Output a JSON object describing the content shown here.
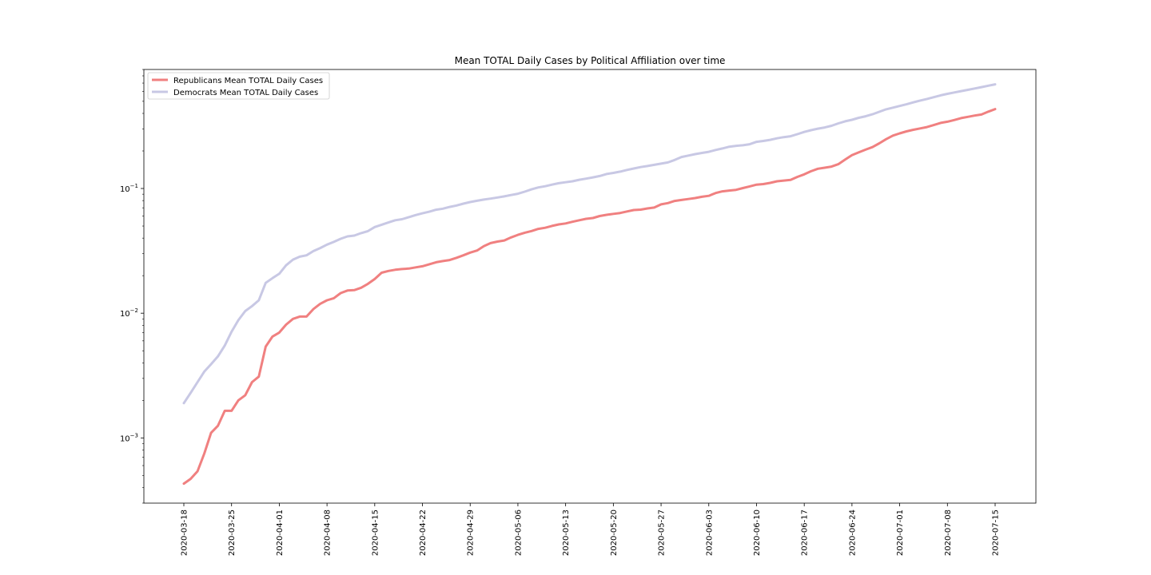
{
  "chart_data": {
    "type": "line",
    "title": "Mean TOTAL Daily Cases by Political Affiliation over time",
    "xlabel": "",
    "ylabel": "",
    "yscale": "log",
    "ylim": [
      0.0003,
      0.9
    ],
    "x_start": "2020-03-18",
    "x_end": "2020-07-15",
    "x_ticks": [
      "2020-03-18",
      "2020-03-25",
      "2020-04-01",
      "2020-04-08",
      "2020-04-15",
      "2020-04-22",
      "2020-04-29",
      "2020-05-06",
      "2020-05-13",
      "2020-05-20",
      "2020-05-27",
      "2020-06-03",
      "2020-06-10",
      "2020-06-17",
      "2020-06-24",
      "2020-07-01",
      "2020-07-08",
      "2020-07-15"
    ],
    "y_ticks": [
      {
        "value": 0.001,
        "base": "10",
        "exp": "−3"
      },
      {
        "value": 0.01,
        "base": "10",
        "exp": "−2"
      },
      {
        "value": 0.1,
        "base": "10",
        "exp": "−1"
      }
    ],
    "grid": false,
    "legend_position": "upper-left",
    "series": [
      {
        "name": "Republicans Mean TOTAL Daily Cases",
        "color": "#f08080",
        "points": [
          [
            "2020-03-18",
            0.00043
          ],
          [
            "2020-03-19",
            0.00047
          ],
          [
            "2020-03-20",
            0.00054
          ],
          [
            "2020-03-21",
            0.00075
          ],
          [
            "2020-03-22",
            0.0011
          ],
          [
            "2020-03-23",
            0.00125
          ],
          [
            "2020-03-24",
            0.00165
          ],
          [
            "2020-03-25",
            0.00165
          ],
          [
            "2020-03-26",
            0.002
          ],
          [
            "2020-03-27",
            0.0022
          ],
          [
            "2020-03-28",
            0.0028
          ],
          [
            "2020-03-29",
            0.0031
          ],
          [
            "2020-03-30",
            0.0054
          ],
          [
            "2020-03-31",
            0.0065
          ],
          [
            "2020-04-01",
            0.007
          ],
          [
            "2020-04-02",
            0.0081
          ],
          [
            "2020-04-03",
            0.009
          ],
          [
            "2020-04-04",
            0.0094
          ],
          [
            "2020-04-05",
            0.0094
          ],
          [
            "2020-04-06",
            0.0108
          ],
          [
            "2020-04-07",
            0.0119
          ],
          [
            "2020-04-08",
            0.0127
          ],
          [
            "2020-04-09",
            0.0132
          ],
          [
            "2020-04-10",
            0.0145
          ],
          [
            "2020-04-11",
            0.0152
          ],
          [
            "2020-04-12",
            0.0153
          ],
          [
            "2020-04-13",
            0.016
          ],
          [
            "2020-04-14",
            0.0172
          ],
          [
            "2020-04-15",
            0.0188
          ],
          [
            "2020-04-16",
            0.0211
          ],
          [
            "2020-04-17",
            0.0218
          ],
          [
            "2020-04-18",
            0.0223
          ],
          [
            "2020-04-19",
            0.0226
          ],
          [
            "2020-04-20",
            0.0228
          ],
          [
            "2020-04-21",
            0.0233
          ],
          [
            "2020-04-22",
            0.0238
          ],
          [
            "2020-04-23",
            0.0247
          ],
          [
            "2020-04-24",
            0.0256
          ],
          [
            "2020-04-25",
            0.0262
          ],
          [
            "2020-04-26",
            0.0267
          ],
          [
            "2020-04-27",
            0.0278
          ],
          [
            "2020-04-28",
            0.0291
          ],
          [
            "2020-04-29",
            0.0306
          ],
          [
            "2020-04-30",
            0.0318
          ],
          [
            "2020-05-01",
            0.0345
          ],
          [
            "2020-05-02",
            0.0365
          ],
          [
            "2020-05-03",
            0.0375
          ],
          [
            "2020-05-04",
            0.0383
          ],
          [
            "2020-05-05",
            0.0405
          ],
          [
            "2020-05-06",
            0.0425
          ],
          [
            "2020-05-07",
            0.0442
          ],
          [
            "2020-05-08",
            0.0456
          ],
          [
            "2020-05-09",
            0.0474
          ],
          [
            "2020-05-10",
            0.0484
          ],
          [
            "2020-05-11",
            0.0501
          ],
          [
            "2020-05-12",
            0.0515
          ],
          [
            "2020-05-13",
            0.0524
          ],
          [
            "2020-05-14",
            0.0541
          ],
          [
            "2020-05-15",
            0.0556
          ],
          [
            "2020-05-16",
            0.0571
          ],
          [
            "2020-05-17",
            0.058
          ],
          [
            "2020-05-18",
            0.0601
          ],
          [
            "2020-05-19",
            0.0615
          ],
          [
            "2020-05-20",
            0.0626
          ],
          [
            "2020-05-21",
            0.0636
          ],
          [
            "2020-05-22",
            0.0654
          ],
          [
            "2020-05-23",
            0.0672
          ],
          [
            "2020-05-24",
            0.0677
          ],
          [
            "2020-05-25",
            0.0692
          ],
          [
            "2020-05-26",
            0.0703
          ],
          [
            "2020-05-27",
            0.0746
          ],
          [
            "2020-05-28",
            0.0764
          ],
          [
            "2020-05-29",
            0.0795
          ],
          [
            "2020-05-30",
            0.0809
          ],
          [
            "2020-05-31",
            0.0823
          ],
          [
            "2020-06-01",
            0.0838
          ],
          [
            "2020-06-02",
            0.0858
          ],
          [
            "2020-06-03",
            0.0873
          ],
          [
            "2020-06-04",
            0.0919
          ],
          [
            "2020-06-05",
            0.0949
          ],
          [
            "2020-06-06",
            0.0962
          ],
          [
            "2020-06-07",
            0.0976
          ],
          [
            "2020-06-08",
            0.1007
          ],
          [
            "2020-06-09",
            0.104
          ],
          [
            "2020-06-10",
            0.1074
          ],
          [
            "2020-06-11",
            0.1085
          ],
          [
            "2020-06-12",
            0.1109
          ],
          [
            "2020-06-13",
            0.1143
          ],
          [
            "2020-06-14",
            0.1157
          ],
          [
            "2020-06-15",
            0.1171
          ],
          [
            "2020-06-16",
            0.1239
          ],
          [
            "2020-06-17",
            0.1299
          ],
          [
            "2020-06-18",
            0.1375
          ],
          [
            "2020-06-19",
            0.1439
          ],
          [
            "2020-06-20",
            0.1468
          ],
          [
            "2020-06-21",
            0.1499
          ],
          [
            "2020-06-22",
            0.1565
          ],
          [
            "2020-06-23",
            0.1705
          ],
          [
            "2020-06-24",
            0.1851
          ],
          [
            "2020-06-25",
            0.1947
          ],
          [
            "2020-06-26",
            0.2047
          ],
          [
            "2020-06-27",
            0.2148
          ],
          [
            "2020-06-28",
            0.2301
          ],
          [
            "2020-06-29",
            0.2484
          ],
          [
            "2020-06-30",
            0.2653
          ],
          [
            "2020-07-01",
            0.2765
          ],
          [
            "2020-07-02",
            0.2872
          ],
          [
            "2020-07-03",
            0.2958
          ],
          [
            "2020-07-04",
            0.3033
          ],
          [
            "2020-07-05",
            0.3107
          ],
          [
            "2020-07-06",
            0.3227
          ],
          [
            "2020-07-07",
            0.3356
          ],
          [
            "2020-07-08",
            0.3433
          ],
          [
            "2020-07-09",
            0.3537
          ],
          [
            "2020-07-10",
            0.3666
          ],
          [
            "2020-07-11",
            0.3755
          ],
          [
            "2020-07-12",
            0.3843
          ],
          [
            "2020-07-13",
            0.3918
          ],
          [
            "2020-07-14",
            0.4132
          ],
          [
            "2020-07-15",
            0.433
          ]
        ]
      },
      {
        "name": "Democrats Mean TOTAL Daily Cases",
        "color": "#c8c8e4",
        "points": [
          [
            "2020-03-18",
            0.0019
          ],
          [
            "2020-03-19",
            0.0023
          ],
          [
            "2020-03-20",
            0.0028
          ],
          [
            "2020-03-21",
            0.0034
          ],
          [
            "2020-03-22",
            0.0039
          ],
          [
            "2020-03-23",
            0.0045
          ],
          [
            "2020-03-24",
            0.0055
          ],
          [
            "2020-03-25",
            0.0071
          ],
          [
            "2020-03-26",
            0.0088
          ],
          [
            "2020-03-27",
            0.0104
          ],
          [
            "2020-03-28",
            0.0114
          ],
          [
            "2020-03-29",
            0.0127
          ],
          [
            "2020-03-30",
            0.0175
          ],
          [
            "2020-03-31",
            0.0191
          ],
          [
            "2020-04-01",
            0.0207
          ],
          [
            "2020-04-02",
            0.0242
          ],
          [
            "2020-04-03",
            0.0269
          ],
          [
            "2020-04-04",
            0.0284
          ],
          [
            "2020-04-05",
            0.0291
          ],
          [
            "2020-04-06",
            0.0315
          ],
          [
            "2020-04-07",
            0.0333
          ],
          [
            "2020-04-08",
            0.0355
          ],
          [
            "2020-04-09",
            0.0373
          ],
          [
            "2020-04-10",
            0.0395
          ],
          [
            "2020-04-11",
            0.0413
          ],
          [
            "2020-04-12",
            0.0419
          ],
          [
            "2020-04-13",
            0.0439
          ],
          [
            "2020-04-14",
            0.0455
          ],
          [
            "2020-04-15",
            0.0491
          ],
          [
            "2020-04-16",
            0.0512
          ],
          [
            "2020-04-17",
            0.0534
          ],
          [
            "2020-04-18",
            0.0556
          ],
          [
            "2020-04-19",
            0.0567
          ],
          [
            "2020-04-20",
            0.0589
          ],
          [
            "2020-04-21",
            0.0612
          ],
          [
            "2020-04-22",
            0.0632
          ],
          [
            "2020-04-23",
            0.0651
          ],
          [
            "2020-04-24",
            0.0676
          ],
          [
            "2020-04-25",
            0.0689
          ],
          [
            "2020-04-26",
            0.0712
          ],
          [
            "2020-04-27",
            0.0731
          ],
          [
            "2020-04-28",
            0.0756
          ],
          [
            "2020-04-29",
            0.0778
          ],
          [
            "2020-04-30",
            0.0797
          ],
          [
            "2020-05-01",
            0.0815
          ],
          [
            "2020-05-02",
            0.083
          ],
          [
            "2020-05-03",
            0.0847
          ],
          [
            "2020-05-04",
            0.0864
          ],
          [
            "2020-05-05",
            0.0886
          ],
          [
            "2020-05-06",
            0.0908
          ],
          [
            "2020-05-07",
            0.0943
          ],
          [
            "2020-05-08",
            0.0984
          ],
          [
            "2020-05-09",
            0.1019
          ],
          [
            "2020-05-10",
            0.1043
          ],
          [
            "2020-05-11",
            0.1074
          ],
          [
            "2020-05-12",
            0.1102
          ],
          [
            "2020-05-13",
            0.1122
          ],
          [
            "2020-05-14",
            0.1143
          ],
          [
            "2020-05-15",
            0.1174
          ],
          [
            "2020-05-16",
            0.1199
          ],
          [
            "2020-05-17",
            0.1227
          ],
          [
            "2020-05-18",
            0.1259
          ],
          [
            "2020-05-19",
            0.1306
          ],
          [
            "2020-05-20",
            0.1334
          ],
          [
            "2020-05-21",
            0.1365
          ],
          [
            "2020-05-22",
            0.1408
          ],
          [
            "2020-05-23",
            0.1446
          ],
          [
            "2020-05-24",
            0.1484
          ],
          [
            "2020-05-25",
            0.1513
          ],
          [
            "2020-05-26",
            0.1548
          ],
          [
            "2020-05-27",
            0.1582
          ],
          [
            "2020-05-28",
            0.1618
          ],
          [
            "2020-05-29",
            0.1693
          ],
          [
            "2020-05-30",
            0.1787
          ],
          [
            "2020-05-31",
            0.1837
          ],
          [
            "2020-06-01",
            0.1886
          ],
          [
            "2020-06-02",
            0.1927
          ],
          [
            "2020-06-03",
            0.1968
          ],
          [
            "2020-06-04",
            0.2035
          ],
          [
            "2020-06-05",
            0.2093
          ],
          [
            "2020-06-06",
            0.2162
          ],
          [
            "2020-06-07",
            0.2197
          ],
          [
            "2020-06-08",
            0.2221
          ],
          [
            "2020-06-09",
            0.2265
          ],
          [
            "2020-06-10",
            0.2365
          ],
          [
            "2020-06-11",
            0.2404
          ],
          [
            "2020-06-12",
            0.2457
          ],
          [
            "2020-06-13",
            0.2526
          ],
          [
            "2020-06-14",
            0.2581
          ],
          [
            "2020-06-15",
            0.2625
          ],
          [
            "2020-06-16",
            0.2725
          ],
          [
            "2020-06-17",
            0.2842
          ],
          [
            "2020-06-18",
            0.2933
          ],
          [
            "2020-06-19",
            0.3019
          ],
          [
            "2020-06-20",
            0.3086
          ],
          [
            "2020-06-21",
            0.3181
          ],
          [
            "2020-06-22",
            0.3325
          ],
          [
            "2020-06-23",
            0.3459
          ],
          [
            "2020-06-24",
            0.3557
          ],
          [
            "2020-06-25",
            0.3688
          ],
          [
            "2020-06-26",
            0.3794
          ],
          [
            "2020-06-27",
            0.3934
          ],
          [
            "2020-06-28",
            0.412
          ],
          [
            "2020-06-29",
            0.4315
          ],
          [
            "2020-06-30",
            0.4447
          ],
          [
            "2020-07-01",
            0.4585
          ],
          [
            "2020-07-02",
            0.4735
          ],
          [
            "2020-07-03",
            0.4903
          ],
          [
            "2020-07-04",
            0.5072
          ],
          [
            "2020-07-05",
            0.5227
          ],
          [
            "2020-07-06",
            0.5392
          ],
          [
            "2020-07-07",
            0.5583
          ],
          [
            "2020-07-08",
            0.5741
          ],
          [
            "2020-07-09",
            0.5887
          ],
          [
            "2020-07-10",
            0.6031
          ],
          [
            "2020-07-11",
            0.6175
          ],
          [
            "2020-07-12",
            0.6335
          ],
          [
            "2020-07-13",
            0.6499
          ],
          [
            "2020-07-14",
            0.6669
          ],
          [
            "2020-07-15",
            0.6839
          ]
        ]
      }
    ]
  }
}
